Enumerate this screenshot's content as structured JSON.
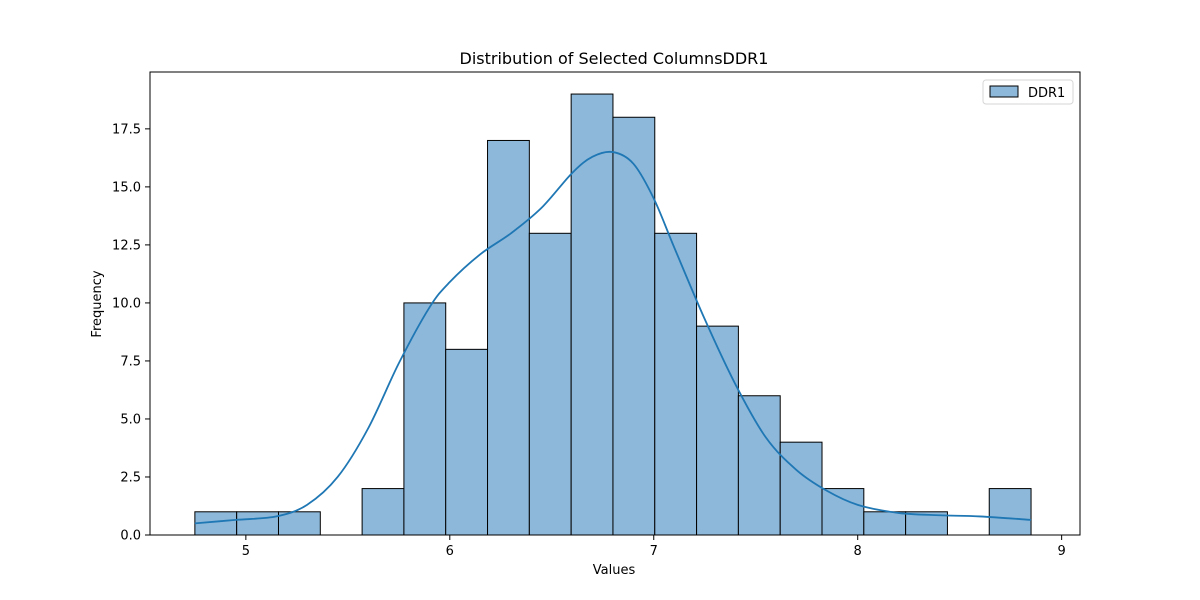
{
  "chart_data": {
    "type": "bar",
    "title": "Distribution of Selected ColumnsDDR1",
    "xlabel": "Values",
    "ylabel": "Frequency",
    "xlim": [
      4.53,
      9.09
    ],
    "ylim": [
      0,
      19.95
    ],
    "x_ticks": [
      5,
      6,
      7,
      8,
      9
    ],
    "y_ticks": [
      0.0,
      2.5,
      5.0,
      7.5,
      10.0,
      12.5,
      15.0,
      17.5
    ],
    "x_tick_labels": [
      "5",
      "6",
      "7",
      "8",
      "9"
    ],
    "y_tick_labels": [
      "0.0",
      "2.5",
      "5.0",
      "7.5",
      "10.0",
      "12.5",
      "15.0",
      "17.5"
    ],
    "bins": [
      {
        "x0": 4.75,
        "x1": 4.955,
        "count": 1
      },
      {
        "x0": 4.955,
        "x1": 5.16,
        "count": 1
      },
      {
        "x0": 5.16,
        "x1": 5.365,
        "count": 1
      },
      {
        "x0": 5.365,
        "x1": 5.57,
        "count": 0
      },
      {
        "x0": 5.57,
        "x1": 5.775,
        "count": 2
      },
      {
        "x0": 5.775,
        "x1": 5.98,
        "count": 10
      },
      {
        "x0": 5.98,
        "x1": 6.185,
        "count": 8
      },
      {
        "x0": 6.185,
        "x1": 6.39,
        "count": 17
      },
      {
        "x0": 6.39,
        "x1": 6.595,
        "count": 13
      },
      {
        "x0": 6.595,
        "x1": 6.8,
        "count": 19
      },
      {
        "x0": 6.8,
        "x1": 7.005,
        "count": 18
      },
      {
        "x0": 7.005,
        "x1": 7.21,
        "count": 13
      },
      {
        "x0": 7.21,
        "x1": 7.415,
        "count": 9
      },
      {
        "x0": 7.415,
        "x1": 7.62,
        "count": 6
      },
      {
        "x0": 7.62,
        "x1": 7.825,
        "count": 4
      },
      {
        "x0": 7.825,
        "x1": 8.03,
        "count": 2
      },
      {
        "x0": 8.03,
        "x1": 8.235,
        "count": 1
      },
      {
        "x0": 8.235,
        "x1": 8.44,
        "count": 1
      },
      {
        "x0": 8.44,
        "x1": 8.645,
        "count": 0
      },
      {
        "x0": 8.645,
        "x1": 8.85,
        "count": 2
      }
    ],
    "kde": {
      "x": [
        4.75,
        4.95,
        5.15,
        5.3,
        5.45,
        5.6,
        5.75,
        5.9,
        6.0,
        6.15,
        6.3,
        6.45,
        6.6,
        6.7,
        6.8,
        6.9,
        7.0,
        7.1,
        7.25,
        7.4,
        7.55,
        7.7,
        7.85,
        8.0,
        8.2,
        8.4,
        8.6,
        8.85
      ],
      "y": [
        0.5,
        0.65,
        0.8,
        1.3,
        2.5,
        4.6,
        7.4,
        9.8,
        10.9,
        12.1,
        13.0,
        14.1,
        15.6,
        16.3,
        16.5,
        16.0,
        14.5,
        12.4,
        9.3,
        6.5,
        4.2,
        2.8,
        1.9,
        1.3,
        0.95,
        0.85,
        0.8,
        0.65
      ]
    },
    "series": [
      {
        "name": "DDR1",
        "bar_color": "#8db8da",
        "line_color": "#1f77b4"
      }
    ],
    "legend_position": "top-right",
    "grid": false
  }
}
